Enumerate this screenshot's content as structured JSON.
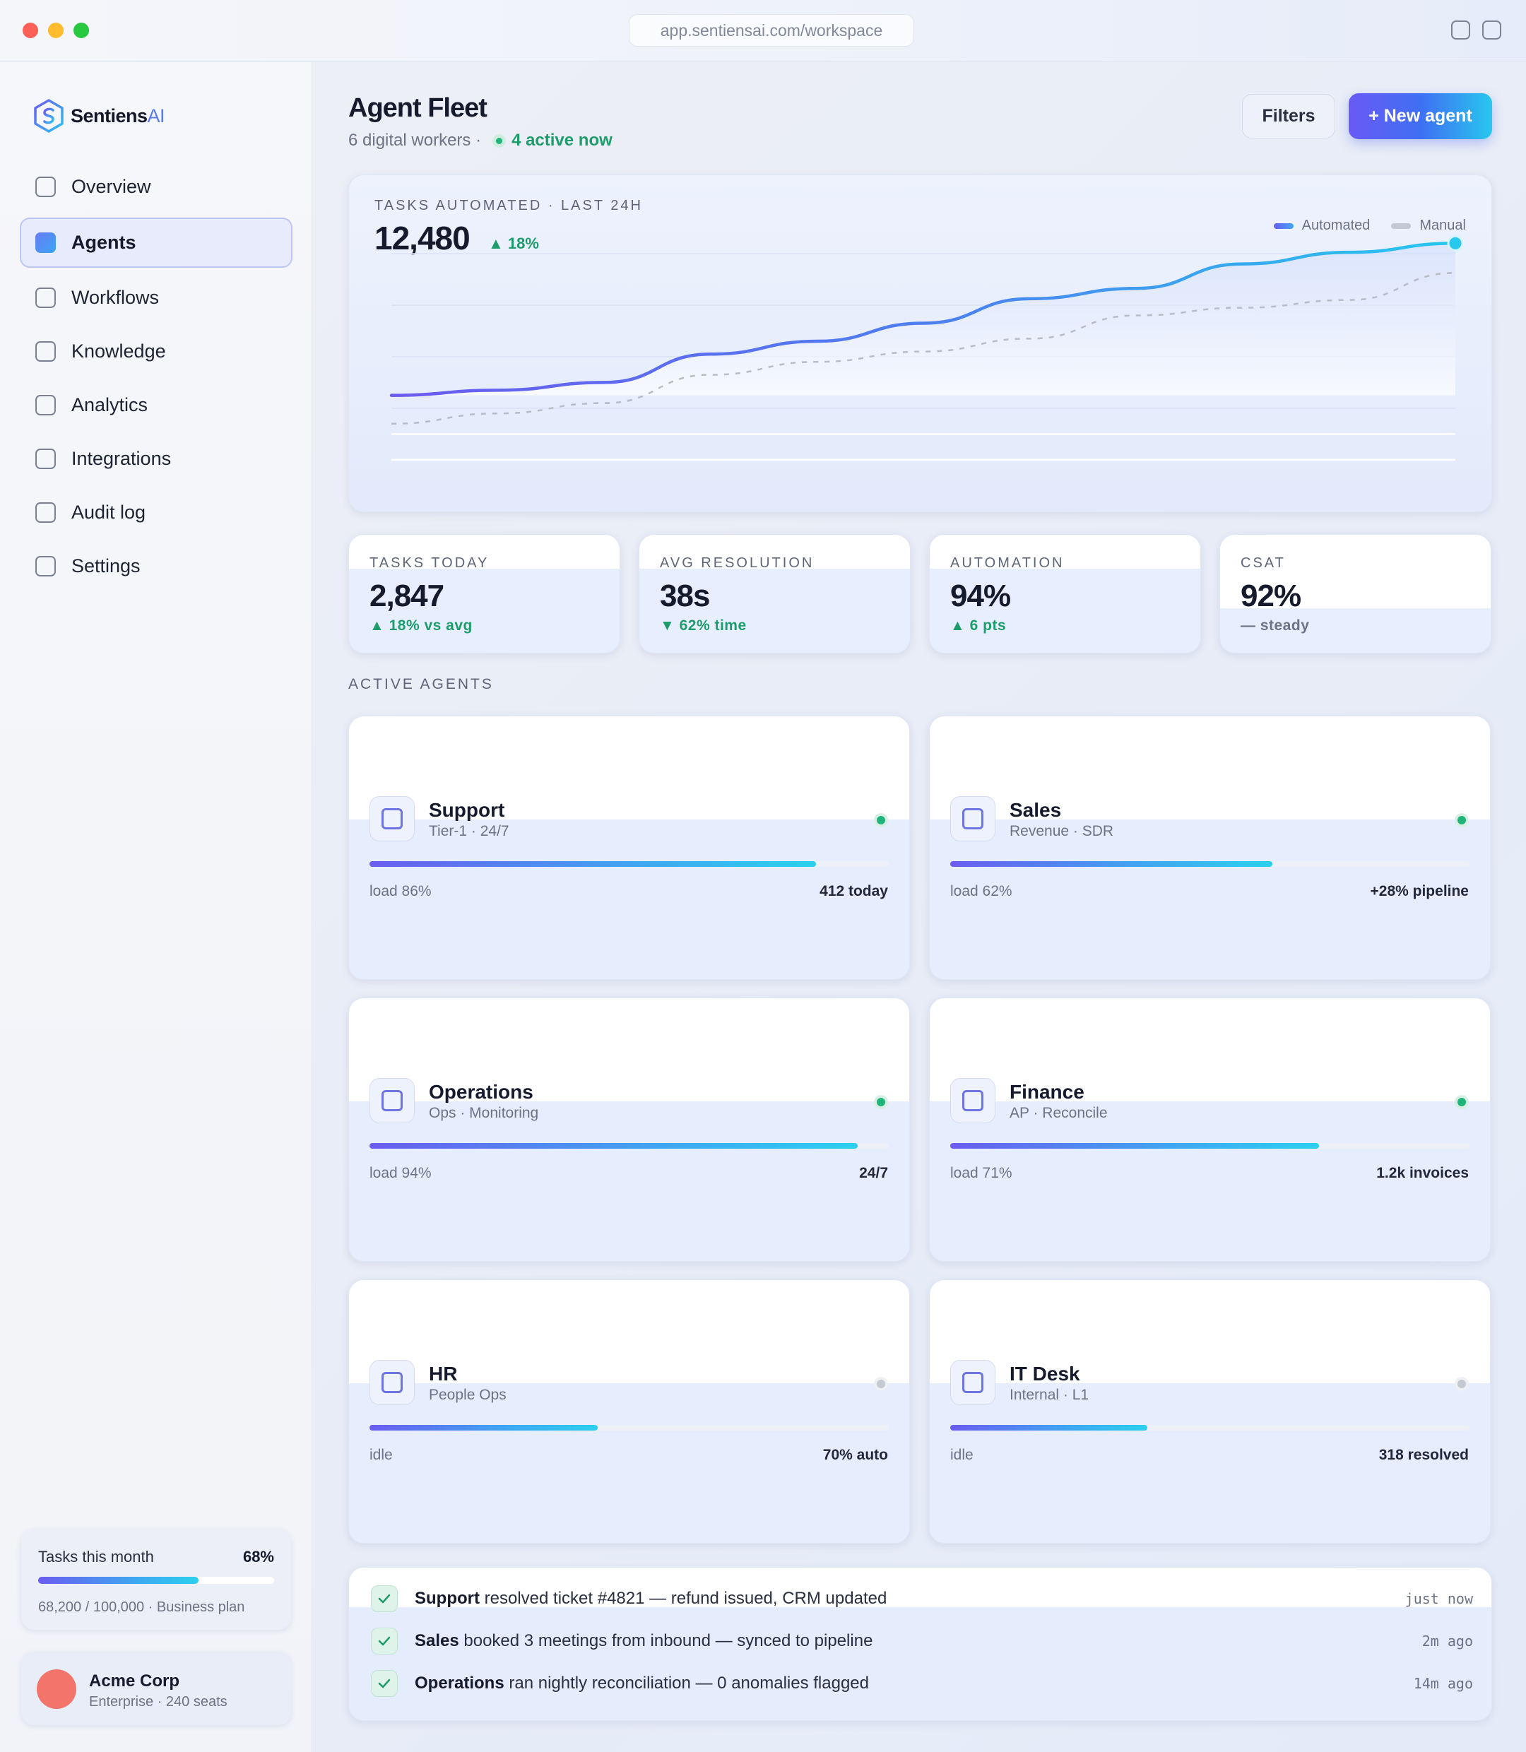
{
  "browser": {
    "url": "app.sentiensai.com/workspace"
  },
  "brand": {
    "name": "Sentiens",
    "suffix": "AI"
  },
  "sidebar": {
    "items": [
      {
        "label": "Overview",
        "active": false
      },
      {
        "label": "Agents",
        "active": true
      },
      {
        "label": "Workflows",
        "active": false
      },
      {
        "label": "Knowledge",
        "active": false
      },
      {
        "label": "Analytics",
        "active": false
      },
      {
        "label": "Integrations",
        "active": false
      },
      {
        "label": "Audit log",
        "active": false
      },
      {
        "label": "Settings",
        "active": false
      }
    ],
    "usage": {
      "label": "Tasks this month",
      "pct_label": "68%",
      "fraction": 0.68,
      "detail": "68,200 / 100,000 · Business plan"
    },
    "account": {
      "name": "Acme Corp",
      "plan": "Enterprise · 240 seats",
      "avatar_color": "#f2746b"
    }
  },
  "header": {
    "title": "Agent Fleet",
    "subtitle": "6 digital workers ·",
    "active": "4 active now",
    "filters_label": "Filters",
    "new_label": "+ New agent"
  },
  "chart_card": {
    "caption": "TASKS AUTOMATED · LAST 24H",
    "value": "12,480",
    "delta": "▲ 18%"
  },
  "chart_data": {
    "type": "line",
    "title": "TASKS AUTOMATED · LAST 24H",
    "xlabel": "",
    "ylabel": "",
    "grid": true,
    "legend_placement": "top-right",
    "series": [
      {
        "name": "Automated",
        "style": "solid",
        "values": [
          10,
          14,
          20,
          42,
          52,
          66,
          85,
          93,
          112,
          121,
          128
        ]
      },
      {
        "name": "Manual",
        "style": "dashed",
        "values": [
          -12,
          -4,
          4,
          26,
          36,
          44,
          54,
          72,
          78,
          84,
          105
        ]
      }
    ],
    "ylim": [
      -45,
      160
    ]
  },
  "stats": [
    {
      "caption": "TASKS TODAY",
      "value": "2,847",
      "delta": "▲ 18% vs avg",
      "tone": "up"
    },
    {
      "caption": "AVG RESOLUTION",
      "value": "38s",
      "delta": "▼ 62% time",
      "tone": "up"
    },
    {
      "caption": "AUTOMATION",
      "value": "94%",
      "delta": "▲ 6 pts",
      "tone": "up"
    },
    {
      "caption": "CSAT",
      "value": "92%",
      "delta": "— steady",
      "tone": "neutral"
    }
  ],
  "agents_section": {
    "label": "ACTIVE AGENTS"
  },
  "agents": [
    {
      "name": "Support",
      "meta": "Tier-1 · 24/7",
      "status": "active",
      "load": 0.86,
      "left": "load 86%",
      "right": "412 today"
    },
    {
      "name": "Sales",
      "meta": "Revenue · SDR",
      "status": "active",
      "load": 0.62,
      "left": "load 62%",
      "right": "+28% pipeline"
    },
    {
      "name": "Operations",
      "meta": "Ops · Monitoring",
      "status": "active",
      "load": 0.94,
      "left": "load 94%",
      "right": "24/7"
    },
    {
      "name": "Finance",
      "meta": "AP · Reconcile",
      "status": "active",
      "load": 0.71,
      "left": "load 71%",
      "right": "1.2k invoices"
    },
    {
      "name": "HR",
      "meta": "People Ops",
      "status": "idle",
      "load": 0.44,
      "left": "idle",
      "right": "70% auto"
    },
    {
      "name": "IT Desk",
      "meta": "Internal · L1",
      "status": "idle",
      "load": 0.38,
      "left": "idle",
      "right": "318 resolved"
    }
  ],
  "feed": [
    {
      "agent": "Support",
      "text": "resolved ticket #4821 — refund issued, CRM updated",
      "time": "just now"
    },
    {
      "agent": "Sales",
      "text": "booked 3 meetings from inbound — synced to pipeline",
      "time": "2m ago"
    },
    {
      "agent": "Operations",
      "text": "ran nightly reconciliation — 0 anomalies flagged",
      "time": "14m ago"
    }
  ],
  "colors": {
    "accent": "#5b6cf4",
    "cyan": "#27c7ee",
    "green": "#1fb47a"
  }
}
